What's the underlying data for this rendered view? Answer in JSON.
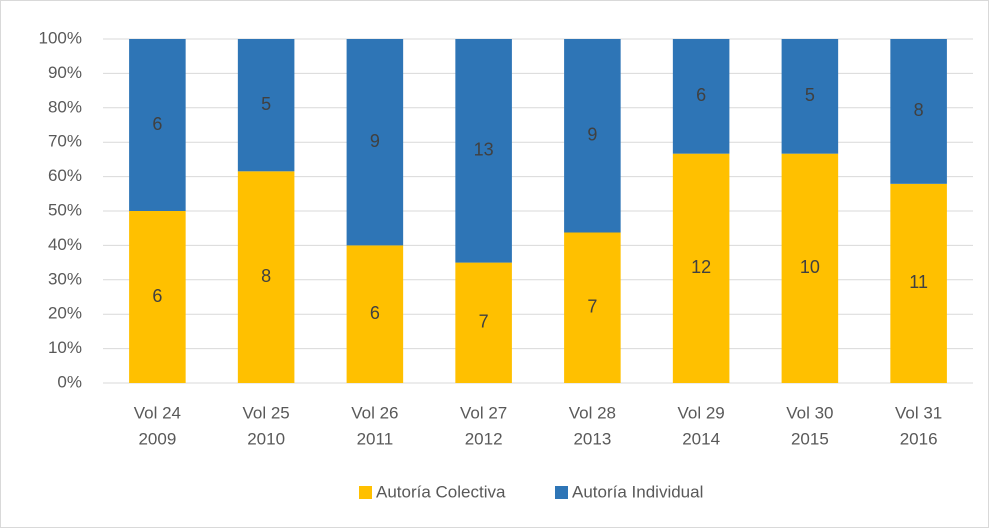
{
  "chart_data": {
    "type": "bar",
    "stacking": "percent",
    "categories": [
      [
        "Vol 24",
        "2009"
      ],
      [
        "Vol 25",
        "2010"
      ],
      [
        "Vol 26",
        "2011"
      ],
      [
        "Vol 27",
        "2012"
      ],
      [
        "Vol 28",
        "2013"
      ],
      [
        "Vol 29",
        "2014"
      ],
      [
        "Vol 30",
        "2015"
      ],
      [
        "Vol 31",
        "2016"
      ]
    ],
    "series": [
      {
        "name": "Autoría Colectiva",
        "color": "#FFC000",
        "values": [
          6,
          8,
          6,
          7,
          7,
          12,
          10,
          11
        ]
      },
      {
        "name": "Autoría Individual",
        "color": "#2E75B6",
        "values": [
          6,
          5,
          9,
          13,
          9,
          6,
          5,
          8
        ]
      }
    ],
    "ylim": [
      0,
      100
    ],
    "yticks": [
      {
        "value": 0,
        "label": "0%"
      },
      {
        "value": 10,
        "label": "10%"
      },
      {
        "value": 20,
        "label": "20%"
      },
      {
        "value": 30,
        "label": "30%"
      },
      {
        "value": 40,
        "label": "40%"
      },
      {
        "value": 50,
        "label": "50%"
      },
      {
        "value": 60,
        "label": "60%"
      },
      {
        "value": 70,
        "label": "70%"
      },
      {
        "value": 80,
        "label": "80%"
      },
      {
        "value": 90,
        "label": "90%"
      },
      {
        "value": 100,
        "label": "100%"
      }
    ],
    "grid": true,
    "legend": "bottom"
  }
}
